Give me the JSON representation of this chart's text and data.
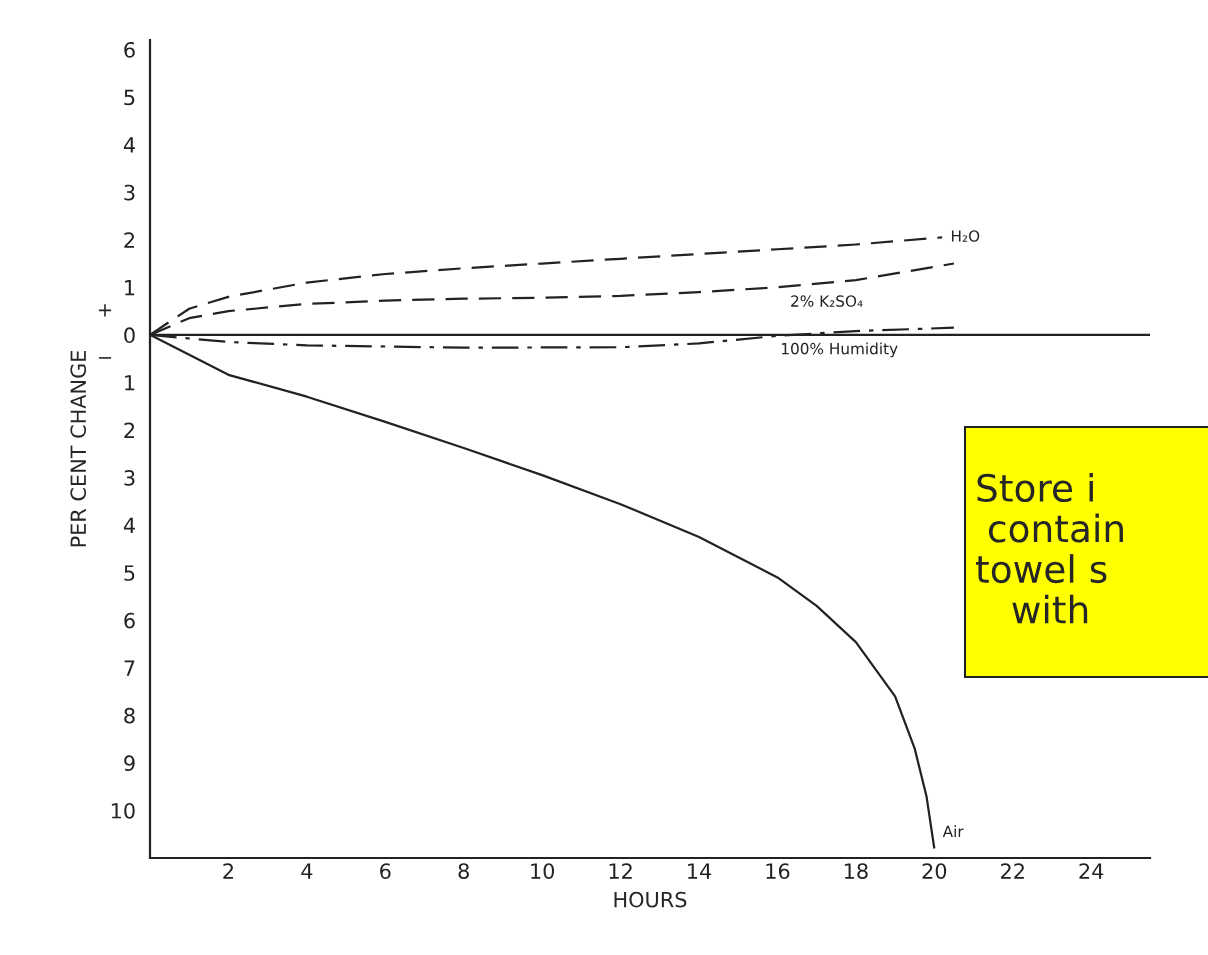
{
  "chart_data": {
    "type": "line",
    "xlabel": "HOURS",
    "ylabel": "PER CENT CHANGE",
    "xlim": [
      0,
      25.5
    ],
    "xticks": [
      2,
      4,
      6,
      8,
      10,
      12,
      14,
      16,
      18,
      20,
      22,
      24
    ],
    "ylim": [
      -11,
      6.2
    ],
    "yticks": [
      6,
      5,
      4,
      3,
      2,
      1,
      0,
      {
        "value": -1,
        "label": "1"
      },
      {
        "value": -2,
        "label": "2"
      },
      {
        "value": -3,
        "label": "3"
      },
      {
        "value": -4,
        "label": "4"
      },
      {
        "value": -5,
        "label": "5"
      },
      {
        "value": -6,
        "label": "6"
      },
      {
        "value": -7,
        "label": "7"
      },
      {
        "value": -8,
        "label": "8"
      },
      {
        "value": -9,
        "label": "9"
      },
      {
        "value": -10,
        "label": "10"
      }
    ],
    "grid": false,
    "legend": false,
    "marker": "none",
    "ref_lines": [
      {
        "axis": "y",
        "value": 0,
        "color": "#222222",
        "line_style": "solid"
      }
    ],
    "series": [
      {
        "name": "H₂O",
        "color": "#222222",
        "line_style": "dashed",
        "x": [
          0,
          1,
          2,
          4,
          6,
          8,
          10,
          12,
          14,
          16,
          18,
          20.2
        ],
        "values": [
          0,
          0.55,
          0.8,
          1.1,
          1.28,
          1.4,
          1.5,
          1.6,
          1.7,
          1.8,
          1.9,
          2.05
        ]
      },
      {
        "name": "2% K₂SO₄",
        "color": "#222222",
        "line_style": "dashed",
        "x": [
          0,
          1,
          2,
          4,
          6,
          8,
          10,
          12,
          14,
          16,
          18,
          20.5
        ],
        "values": [
          0,
          0.35,
          0.5,
          0.65,
          0.72,
          0.76,
          0.78,
          0.82,
          0.9,
          1.0,
          1.15,
          1.5
        ]
      },
      {
        "name": "100% Humidity",
        "color": "#222222",
        "line_style": "dashdot",
        "x": [
          0,
          2,
          4,
          8,
          12,
          14,
          16,
          18,
          20.5
        ],
        "values": [
          0,
          -0.15,
          -0.22,
          -0.27,
          -0.26,
          -0.18,
          -0.02,
          0.08,
          0.15
        ]
      },
      {
        "name": "Air",
        "color": "#222222",
        "line_style": "solid",
        "x": [
          0,
          2,
          4,
          6,
          8,
          10,
          12,
          14,
          16,
          17,
          18,
          19,
          19.5,
          19.8,
          20
        ],
        "values": [
          0,
          -0.84,
          -1.3,
          -1.83,
          -2.38,
          -2.95,
          -3.56,
          -4.25,
          -5.1,
          -5.7,
          -6.46,
          -7.6,
          -8.7,
          -9.7,
          -10.8
        ]
      }
    ],
    "annotations": [
      "+",
      "−",
      "Store i\n contain\ntowel s\n   with"
    ]
  }
}
